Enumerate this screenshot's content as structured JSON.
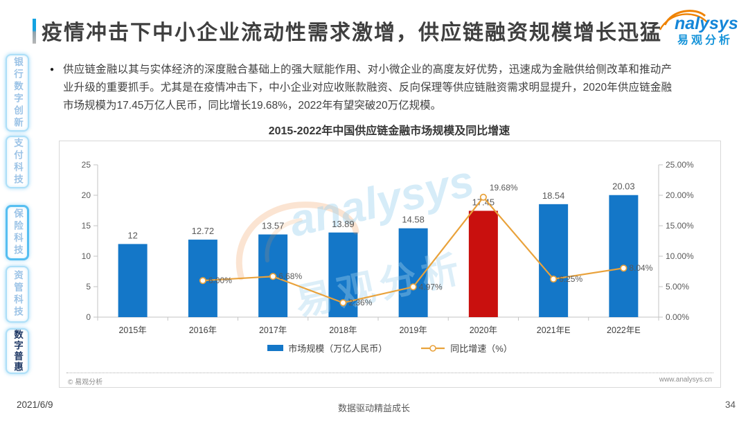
{
  "header": {
    "title": "疫情冲击下中小企业流动性需求激增，供应链融资规模增长迅猛",
    "logo": {
      "brand": "nalysys",
      "brand_cn": "易观分析"
    }
  },
  "sidebar": {
    "items": [
      {
        "label": "银行数字创新",
        "active": false
      },
      {
        "label": "支付科技",
        "active": false
      },
      {
        "label": "保险科技",
        "active": false
      },
      {
        "label": "资管科技",
        "active": false
      },
      {
        "label": "数字普惠",
        "active": true
      }
    ]
  },
  "intro": {
    "bullet": "●",
    "text": "供应链金融以其与实体经济的深度融合基础上的强大赋能作用、对小微企业的高度友好优势，迅速成为金融供给侧改革和推动产业升级的重要抓手。尤其是在疫情冲击下，中小企业对应收账款融资、反向保理等供应链融资需求明显提升，2020年供应链金融市场规模为17.45万亿人民币，同比增长19.68%，2022年有望突破20万亿规模。"
  },
  "chart_data": {
    "type": "bar",
    "subtype": "bar+line combo, dual axis",
    "title": "2015-2022年中国供应链金融市场规模及同比增速",
    "categories": [
      "2015年",
      "2016年",
      "2017年",
      "2018年",
      "2019年",
      "2020年",
      "2021年E",
      "2022年E"
    ],
    "series": [
      {
        "name": "市场规模（万亿人民币）",
        "type": "bar",
        "axis": "left",
        "values": [
          12,
          12.72,
          13.57,
          13.89,
          14.58,
          17.45,
          18.54,
          20.03
        ],
        "labels": [
          "12",
          "12.72",
          "13.57",
          "13.89",
          "14.58",
          "17.45",
          "18.54",
          "20.03"
        ],
        "highlight_index": 5
      },
      {
        "name": "同比增速（%）",
        "type": "line",
        "axis": "right",
        "values": [
          null,
          6.0,
          6.68,
          2.36,
          4.97,
          19.68,
          6.25,
          8.04
        ],
        "labels": [
          null,
          "6.00%",
          "6.68%",
          "2.36%",
          "4.97%",
          "19.68%",
          "6.25%",
          "8.04%"
        ],
        "peak_index": 5
      }
    ],
    "left_axis": {
      "min": 0,
      "max": 25,
      "ticks": [
        "0",
        "5",
        "10",
        "15",
        "20",
        "25"
      ]
    },
    "right_axis": {
      "min": 0,
      "max": 25,
      "ticks": [
        "0.00%",
        "5.00%",
        "10.00%",
        "15.00%",
        "20.00%",
        "25.00%"
      ]
    },
    "colors": {
      "bar": "#1477C8",
      "bar_highlight": "#C9100E",
      "line": "#E9A23B"
    },
    "legend_position": "bottom",
    "grid": false
  },
  "chart_card": {
    "copyright": "© 易观分析",
    "site": "www.analysys.cn"
  },
  "watermark": {
    "script": "analysys",
    "cn": "易观分析"
  },
  "footer": {
    "date": "2021/6/9",
    "slogan": "数据驱动精益成长",
    "page": "34"
  }
}
